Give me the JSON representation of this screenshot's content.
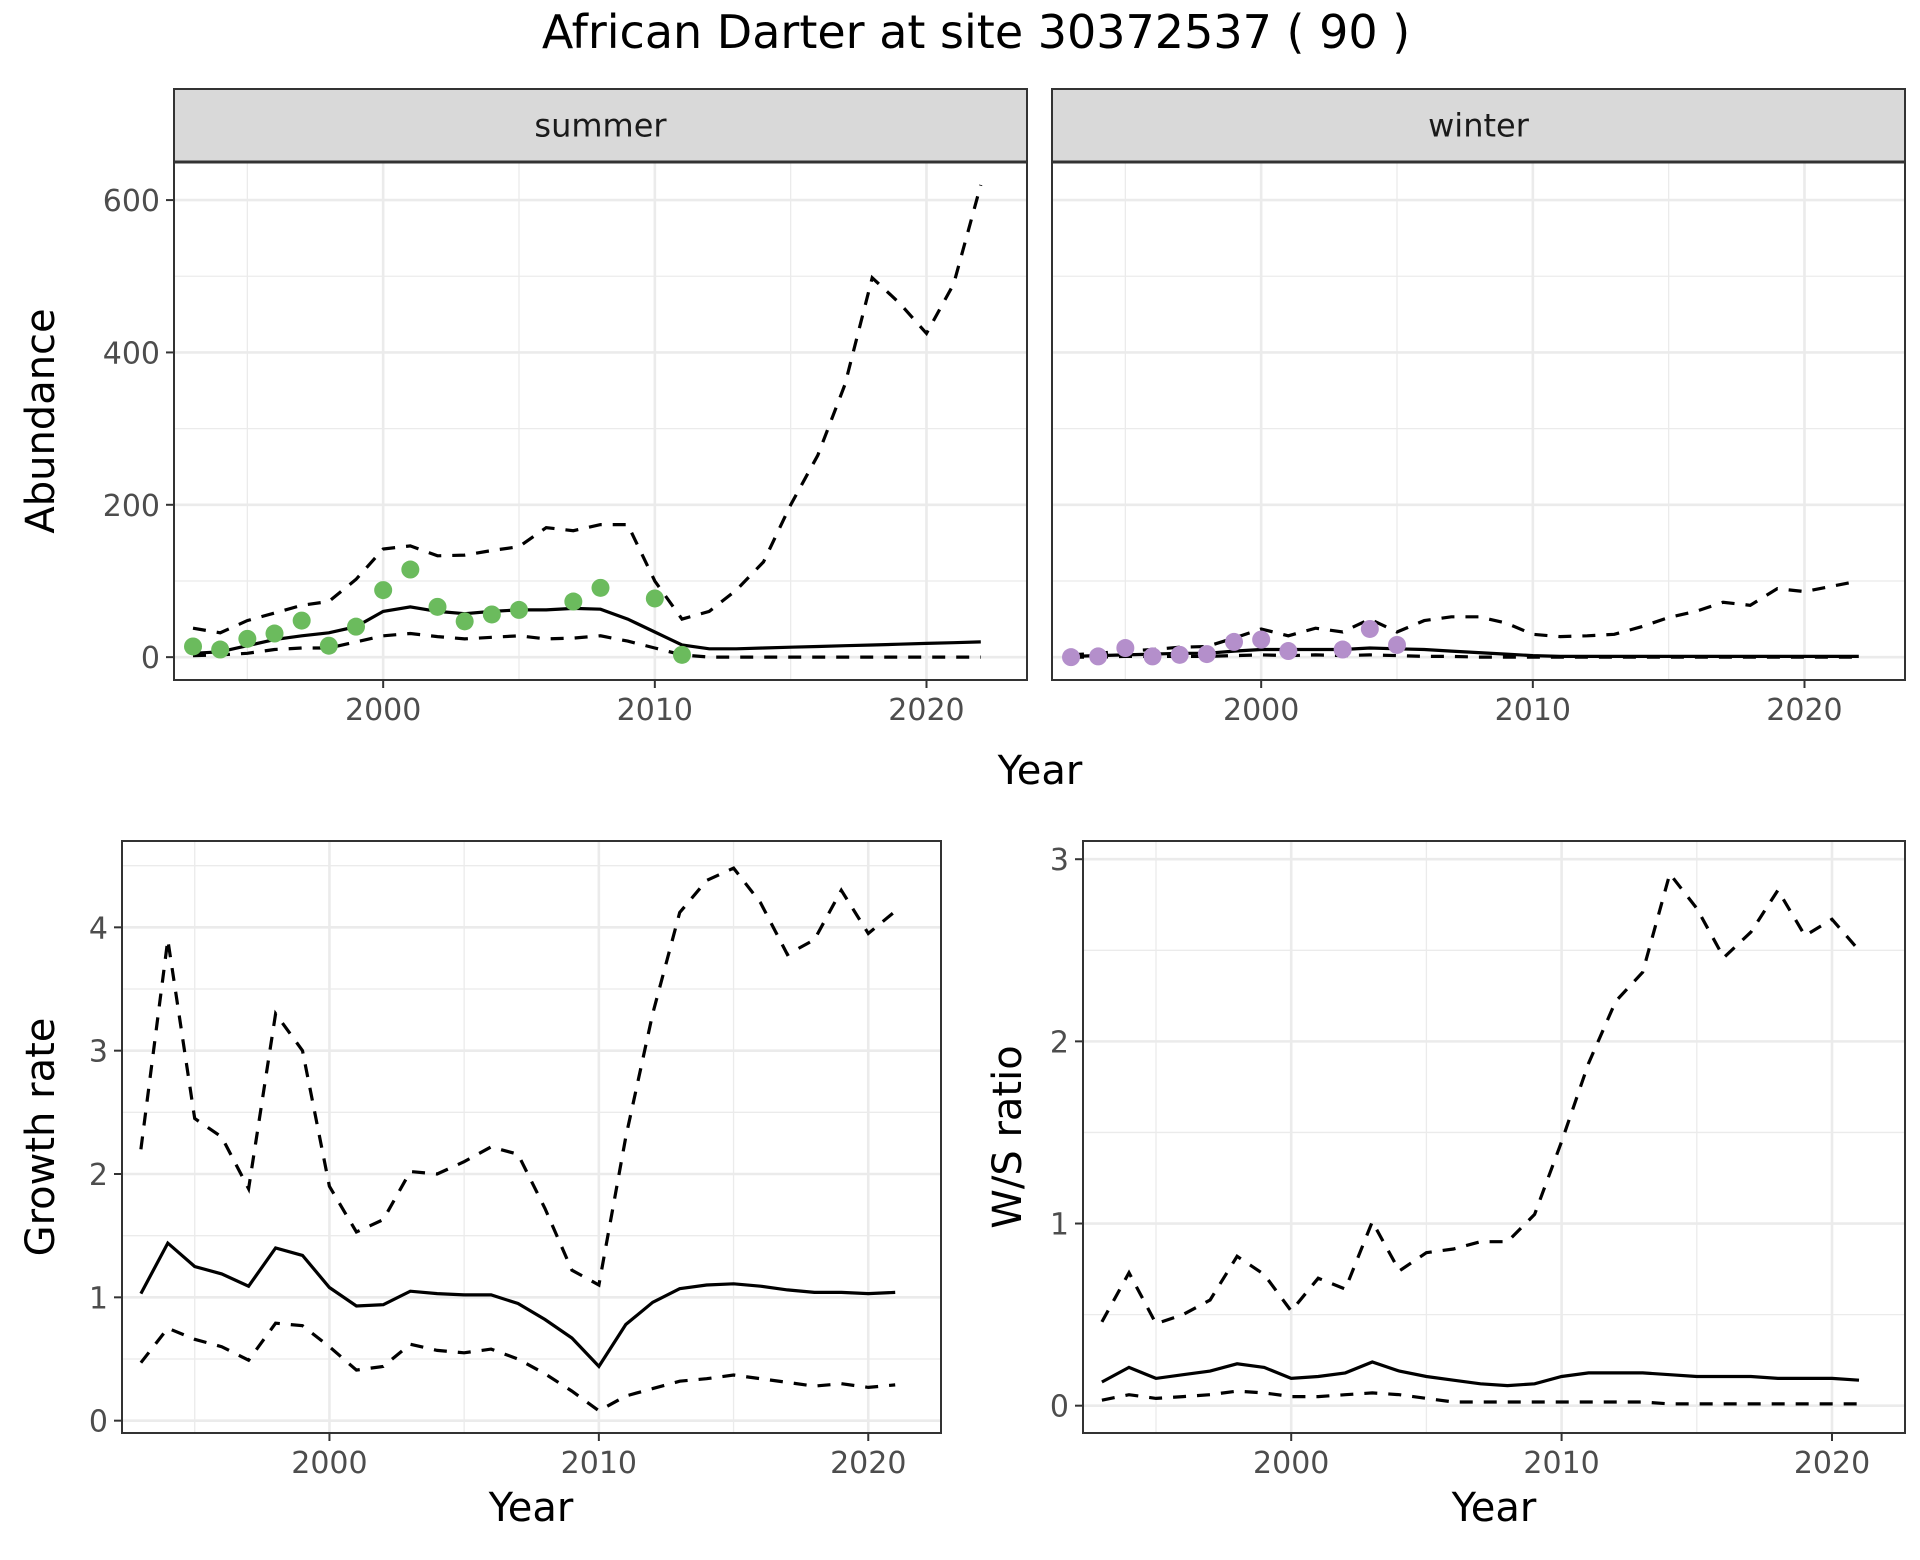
{
  "figure": {
    "title": "African Darter at site 30372537 ( 90 )"
  },
  "chart_data": [
    {
      "type": "line",
      "panel": "summer",
      "facet_label": "summer",
      "xlabel": "Year",
      "ylabel": "Abundance",
      "xlim": [
        1992.3,
        2023.7
      ],
      "ylim": [
        -30,
        650
      ],
      "x_ticks": [
        2000,
        2010,
        2020
      ],
      "y_ticks": [
        0,
        200,
        400,
        600
      ],
      "grid": true,
      "series": [
        {
          "role": "estimate",
          "style": "solid",
          "color": "#000000",
          "x": [
            1993,
            1994,
            1995,
            1996,
            1997,
            1998,
            1999,
            2000,
            2001,
            2002,
            2003,
            2004,
            2005,
            2006,
            2007,
            2008,
            2009,
            2010,
            2011,
            2012,
            2013,
            2014,
            2015,
            2016,
            2017,
            2018,
            2019,
            2020,
            2021,
            2022
          ],
          "y": [
            5,
            7,
            15,
            23,
            28,
            32,
            40,
            60,
            66,
            60,
            57,
            60,
            62,
            62,
            64,
            63,
            50,
            33,
            16,
            11,
            11,
            12,
            13,
            14,
            15,
            16,
            17,
            18,
            19,
            20
          ]
        },
        {
          "role": "upper",
          "style": "dashed",
          "color": "#000000",
          "x": [
            1993,
            1994,
            1995,
            1996,
            1997,
            1998,
            1999,
            2000,
            2001,
            2002,
            2003,
            2004,
            2005,
            2006,
            2007,
            2008,
            2009,
            2010,
            2011,
            2012,
            2013,
            2014,
            2015,
            2016,
            2017,
            2018,
            2019,
            2020,
            2021,
            2022
          ],
          "y": [
            38,
            32,
            48,
            58,
            68,
            73,
            102,
            142,
            146,
            133,
            134,
            140,
            145,
            170,
            166,
            174,
            174,
            100,
            50,
            60,
            88,
            125,
            200,
            265,
            358,
            498,
            465,
            425,
            490,
            620
          ]
        },
        {
          "role": "lower",
          "style": "dashed",
          "color": "#000000",
          "x": [
            1993,
            1994,
            1995,
            1996,
            1997,
            1998,
            1999,
            2000,
            2001,
            2002,
            2003,
            2004,
            2005,
            2006,
            2007,
            2008,
            2009,
            2010,
            2011,
            2012,
            2013,
            2014,
            2015,
            2016,
            2017,
            2018,
            2019,
            2020,
            2021,
            2022
          ],
          "y": [
            2,
            3,
            5,
            10,
            12,
            12,
            20,
            28,
            31,
            27,
            24,
            26,
            28,
            24,
            25,
            28,
            21,
            12,
            3,
            0,
            0,
            0,
            0,
            0,
            0,
            0,
            0,
            0,
            0,
            0
          ]
        },
        {
          "role": "observed",
          "style": "points",
          "color": "#6bbb5d",
          "x": [
            1993,
            1994,
            1995,
            1996,
            1997,
            1998,
            1999,
            2000,
            2001,
            2002,
            2003,
            2004,
            2005,
            2007,
            2008,
            2010,
            2011
          ],
          "y": [
            14,
            10,
            24,
            31,
            48,
            15,
            40,
            88,
            115,
            66,
            47,
            56,
            62,
            73,
            91,
            77,
            3
          ]
        }
      ]
    },
    {
      "type": "line",
      "panel": "winter",
      "facet_label": "winter",
      "xlabel": "Year",
      "ylabel": "Abundance",
      "xlim": [
        1992.3,
        2023.7
      ],
      "ylim": [
        -30,
        650
      ],
      "x_ticks": [
        2000,
        2010,
        2020
      ],
      "y_ticks": [
        0,
        200,
        400,
        600
      ],
      "grid": true,
      "series": [
        {
          "role": "estimate",
          "style": "solid",
          "color": "#000000",
          "x": [
            1993,
            1994,
            1995,
            1996,
            1997,
            1998,
            1999,
            2000,
            2001,
            2002,
            2003,
            2004,
            2005,
            2006,
            2007,
            2008,
            2009,
            2010,
            2011,
            2012,
            2013,
            2014,
            2015,
            2016,
            2017,
            2018,
            2019,
            2020,
            2021,
            2022
          ],
          "y": [
            1,
            2,
            3,
            4,
            5,
            5,
            8,
            10,
            10,
            10,
            10,
            12,
            11,
            10,
            8,
            6,
            4,
            2,
            1,
            1,
            1,
            1,
            1,
            1,
            1,
            1,
            1,
            1,
            1,
            1
          ]
        },
        {
          "role": "upper",
          "style": "dashed",
          "color": "#000000",
          "x": [
            1993,
            1994,
            1995,
            1996,
            1997,
            1998,
            1999,
            2000,
            2001,
            2002,
            2003,
            2004,
            2005,
            2006,
            2007,
            2008,
            2009,
            2010,
            2011,
            2012,
            2013,
            2014,
            2015,
            2016,
            2017,
            2018,
            2019,
            2020,
            2021,
            2022
          ],
          "y": [
            3,
            5,
            8,
            10,
            13,
            14,
            25,
            37,
            28,
            38,
            33,
            50,
            33,
            48,
            53,
            53,
            45,
            30,
            27,
            28,
            30,
            40,
            52,
            60,
            72,
            68,
            90,
            86,
            93,
            100
          ]
        },
        {
          "role": "lower",
          "style": "dashed",
          "color": "#000000",
          "x": [
            1993,
            1994,
            1995,
            1996,
            1997,
            1998,
            1999,
            2000,
            2001,
            2002,
            2003,
            2004,
            2005,
            2006,
            2007,
            2008,
            2009,
            2010,
            2011,
            2012,
            2013,
            2014,
            2015,
            2016,
            2017,
            2018,
            2019,
            2020,
            2021,
            2022
          ],
          "y": [
            0,
            0,
            1,
            1,
            1,
            1,
            2,
            3,
            2,
            3,
            2,
            3,
            2,
            1,
            1,
            0,
            0,
            0,
            0,
            0,
            0,
            0,
            0,
            0,
            0,
            0,
            0,
            0,
            0,
            0
          ]
        },
        {
          "role": "observed",
          "style": "points",
          "color": "#b48fcb",
          "x": [
            1993,
            1994,
            1995,
            1996,
            1997,
            1998,
            1999,
            2000,
            2001,
            2003,
            2004,
            2005
          ],
          "y": [
            0,
            1,
            12,
            1,
            3,
            4,
            20,
            23,
            8,
            10,
            37,
            16
          ]
        }
      ]
    },
    {
      "type": "line",
      "panel": "growth",
      "xlabel": "Year",
      "ylabel": "Growth rate",
      "xlim": [
        1992.3,
        2022.7
      ],
      "ylim": [
        -0.1,
        4.7
      ],
      "x_ticks": [
        2000,
        2010,
        2020
      ],
      "y_ticks": [
        0,
        1,
        2,
        3,
        4
      ],
      "grid": true,
      "series": [
        {
          "role": "estimate",
          "style": "solid",
          "color": "#000000",
          "x": [
            1993,
            1994,
            1995,
            1996,
            1997,
            1998,
            1999,
            2000,
            2001,
            2002,
            2003,
            2004,
            2005,
            2006,
            2007,
            2008,
            2009,
            2010,
            2011,
            2012,
            2013,
            2014,
            2015,
            2016,
            2017,
            2018,
            2019,
            2020,
            2021
          ],
          "y": [
            1.03,
            1.44,
            1.25,
            1.19,
            1.09,
            1.4,
            1.34,
            1.08,
            0.93,
            0.94,
            1.05,
            1.03,
            1.02,
            1.02,
            0.95,
            0.82,
            0.67,
            0.44,
            0.78,
            0.96,
            1.07,
            1.1,
            1.11,
            1.09,
            1.06,
            1.04,
            1.04,
            1.03,
            1.04
          ]
        },
        {
          "role": "upper",
          "style": "dashed",
          "color": "#000000",
          "x": [
            1993,
            1994,
            1995,
            1996,
            1997,
            1998,
            1999,
            2000,
            2001,
            2002,
            2003,
            2004,
            2005,
            2006,
            2007,
            2008,
            2009,
            2010,
            2011,
            2012,
            2013,
            2014,
            2015,
            2016,
            2017,
            2018,
            2019,
            2020,
            2021
          ],
          "y": [
            2.2,
            3.9,
            2.45,
            2.3,
            1.88,
            3.3,
            3.0,
            1.9,
            1.53,
            1.63,
            2.02,
            2.0,
            2.1,
            2.22,
            2.16,
            1.72,
            1.22,
            1.1,
            2.3,
            3.3,
            4.12,
            4.38,
            4.48,
            4.2,
            3.78,
            3.9,
            4.3,
            3.95,
            4.13
          ]
        },
        {
          "role": "lower",
          "style": "dashed",
          "color": "#000000",
          "x": [
            1993,
            1994,
            1995,
            1996,
            1997,
            1998,
            1999,
            2000,
            2001,
            2002,
            2003,
            2004,
            2005,
            2006,
            2007,
            2008,
            2009,
            2010,
            2011,
            2012,
            2013,
            2014,
            2015,
            2016,
            2017,
            2018,
            2019,
            2020,
            2021
          ],
          "y": [
            0.47,
            0.75,
            0.66,
            0.6,
            0.49,
            0.79,
            0.77,
            0.6,
            0.41,
            0.44,
            0.62,
            0.57,
            0.55,
            0.58,
            0.5,
            0.38,
            0.24,
            0.08,
            0.2,
            0.26,
            0.32,
            0.34,
            0.37,
            0.34,
            0.31,
            0.28,
            0.3,
            0.27,
            0.29
          ]
        }
      ]
    },
    {
      "type": "line",
      "panel": "ws_ratio",
      "xlabel": "Year",
      "ylabel": "W/S ratio",
      "xlim": [
        1992.3,
        2022.7
      ],
      "ylim": [
        -0.15,
        3.1
      ],
      "x_ticks": [
        2000,
        2010,
        2020
      ],
      "y_ticks": [
        0,
        1,
        2,
        3
      ],
      "grid": true,
      "series": [
        {
          "role": "estimate",
          "style": "solid",
          "color": "#000000",
          "x": [
            1993,
            1994,
            1995,
            1996,
            1997,
            1998,
            1999,
            2000,
            2001,
            2002,
            2003,
            2004,
            2005,
            2006,
            2007,
            2008,
            2009,
            2010,
            2011,
            2012,
            2013,
            2014,
            2015,
            2016,
            2017,
            2018,
            2019,
            2020,
            2021
          ],
          "y": [
            0.13,
            0.21,
            0.15,
            0.17,
            0.19,
            0.23,
            0.21,
            0.15,
            0.16,
            0.18,
            0.24,
            0.19,
            0.16,
            0.14,
            0.12,
            0.11,
            0.12,
            0.16,
            0.18,
            0.18,
            0.18,
            0.17,
            0.16,
            0.16,
            0.16,
            0.15,
            0.15,
            0.15,
            0.14
          ]
        },
        {
          "role": "upper",
          "style": "dashed",
          "color": "#000000",
          "x": [
            1993,
            1994,
            1995,
            1996,
            1997,
            1998,
            1999,
            2000,
            2001,
            2002,
            2003,
            2004,
            2005,
            2006,
            2007,
            2008,
            2009,
            2010,
            2011,
            2012,
            2013,
            2014,
            2015,
            2016,
            2017,
            2018,
            2019,
            2020,
            2021
          ],
          "y": [
            0.46,
            0.73,
            0.45,
            0.5,
            0.58,
            0.82,
            0.72,
            0.52,
            0.7,
            0.64,
            1.01,
            0.74,
            0.84,
            0.86,
            0.9,
            0.9,
            1.05,
            1.45,
            1.88,
            2.22,
            2.38,
            2.92,
            2.73,
            2.46,
            2.6,
            2.83,
            2.58,
            2.67,
            2.5
          ]
        },
        {
          "role": "lower",
          "style": "dashed",
          "color": "#000000",
          "x": [
            1993,
            1994,
            1995,
            1996,
            1997,
            1998,
            1999,
            2000,
            2001,
            2002,
            2003,
            2004,
            2005,
            2006,
            2007,
            2008,
            2009,
            2010,
            2011,
            2012,
            2013,
            2014,
            2015,
            2016,
            2017,
            2018,
            2019,
            2020,
            2021
          ],
          "y": [
            0.03,
            0.06,
            0.04,
            0.05,
            0.06,
            0.08,
            0.07,
            0.05,
            0.05,
            0.06,
            0.07,
            0.06,
            0.04,
            0.02,
            0.02,
            0.02,
            0.02,
            0.02,
            0.02,
            0.02,
            0.02,
            0.01,
            0.01,
            0.01,
            0.01,
            0.01,
            0.01,
            0.01,
            0.01
          ]
        }
      ]
    }
  ]
}
